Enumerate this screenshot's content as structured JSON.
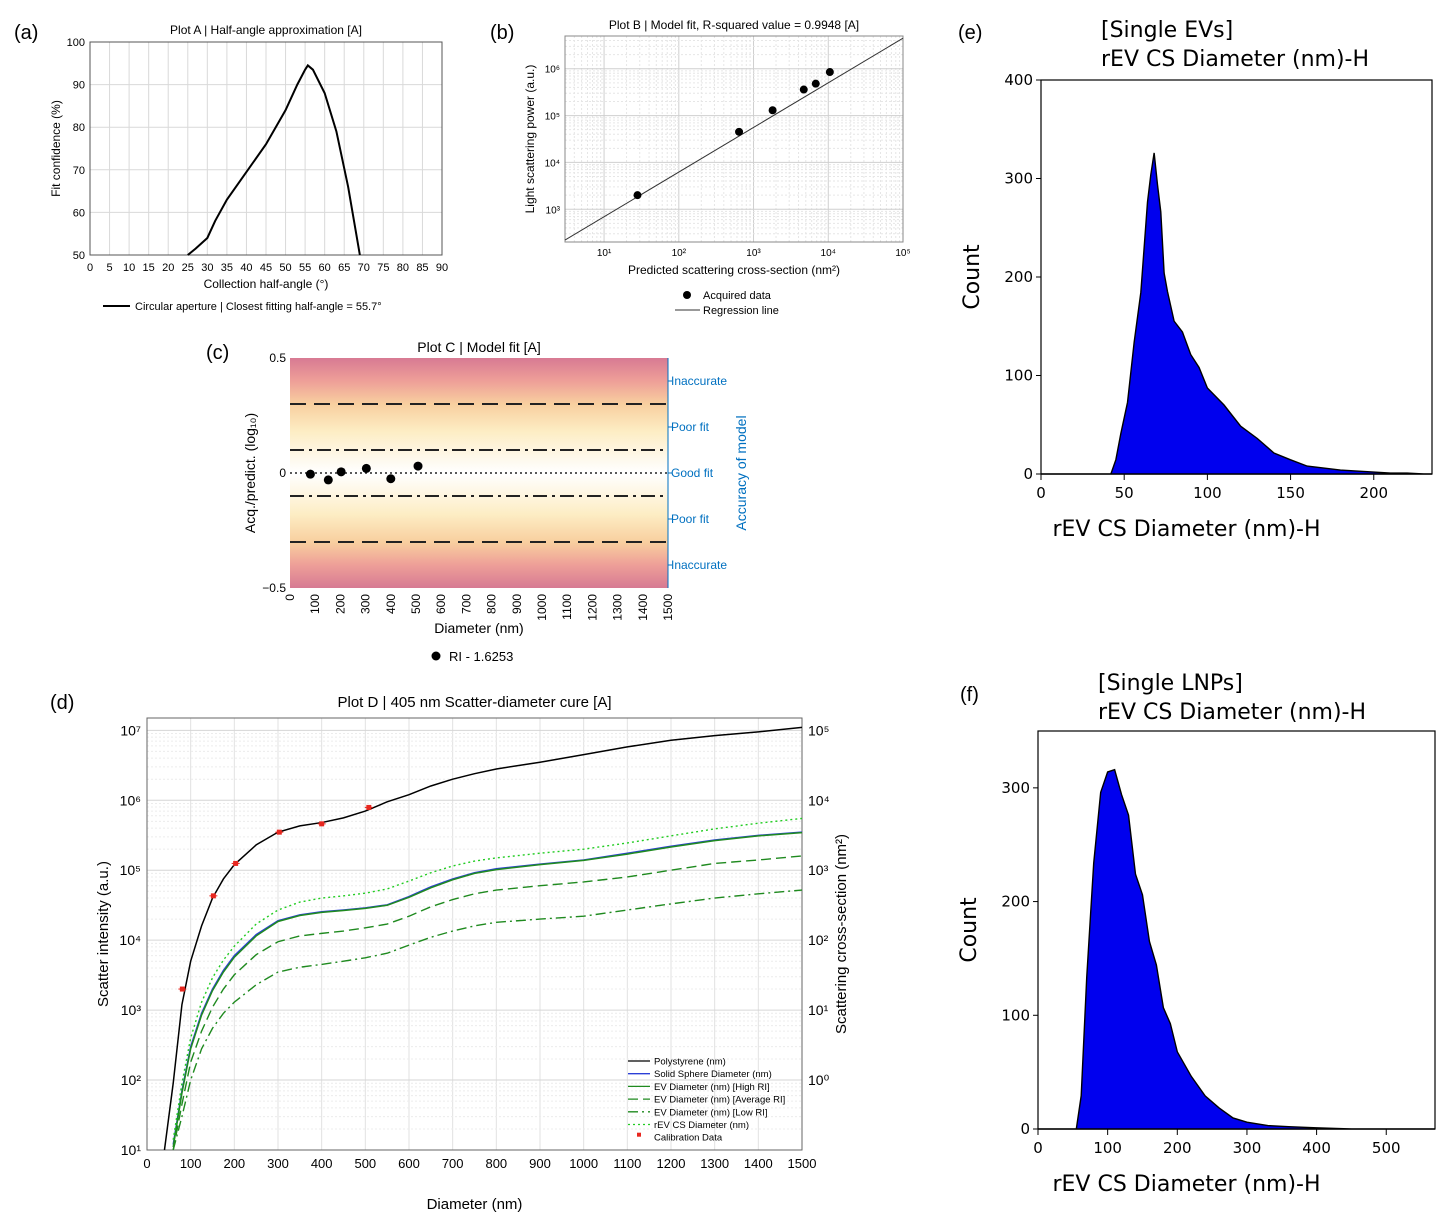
{
  "panel_labels": {
    "a": "(a)",
    "b": "(b)",
    "c": "(c)",
    "d": "(d)",
    "e": "(e)",
    "f": "(f)"
  },
  "chart_data": [
    {
      "id": "a",
      "type": "line",
      "title": "Plot A | Half-angle approximation [A]",
      "xlabel": "Collection half-angle (°)",
      "ylabel": "Fit confidence (%)",
      "xlim": [
        0,
        90
      ],
      "ylim": [
        50,
        100
      ],
      "x_ticks": [
        0,
        5,
        10,
        15,
        20,
        25,
        30,
        35,
        40,
        45,
        50,
        55,
        60,
        65,
        70,
        75,
        80,
        85,
        90
      ],
      "y_ticks": [
        50,
        60,
        70,
        80,
        90,
        100
      ],
      "grid": true,
      "legend_position": "bottom",
      "series": [
        {
          "name": "Circular aperture | Closest fitting half-angle = 55.7°",
          "color": "#000000",
          "x": [
            25,
            27,
            30,
            32,
            35,
            40,
            45,
            50,
            53,
            55,
            55.7,
            57,
            60,
            63,
            66,
            69
          ],
          "y": [
            50,
            51.5,
            54,
            58,
            63,
            69.5,
            76,
            84,
            90,
            93.5,
            94.5,
            93.5,
            88,
            79,
            66,
            50
          ]
        }
      ]
    },
    {
      "id": "b",
      "type": "scatter",
      "title": "Plot B | Model fit, R-squared value = 0.9948 [A]",
      "xlabel": "Predicted scattering cross-section (nm²)",
      "ylabel": "Light scattering power (a.u.)",
      "x_scale": "log",
      "y_scale": "log",
      "xlim": [
        3,
        100000
      ],
      "ylim": [
        200,
        5000000
      ],
      "x_ticks": [
        "10¹",
        "10²",
        "10³",
        "10⁴",
        "10⁵"
      ],
      "y_ticks": [
        "10³",
        "10⁴",
        "10⁵",
        "10⁶"
      ],
      "grid": true,
      "legend_position": "bottom",
      "series": [
        {
          "name": "Acquired data",
          "x": [
            28,
            640,
            1800,
            4700,
            6800,
            10500
          ],
          "y": [
            2000,
            45000,
            130000,
            360000,
            480000,
            850000
          ]
        },
        {
          "name": "Regression line",
          "x": [
            3,
            100000
          ],
          "y": [
            220,
            4500000
          ]
        }
      ]
    },
    {
      "id": "c",
      "type": "scatter",
      "title": "Plot C | Model fit [A]",
      "xlabel": "Diameter (nm)",
      "ylabel": "Acq./predict. (log₁₀)",
      "y2label": "Accuracy of model",
      "xlim": [
        0,
        1500
      ],
      "ylim": [
        -0.5,
        0.5
      ],
      "x_ticks": [
        0,
        100,
        200,
        300,
        400,
        500,
        600,
        700,
        800,
        900,
        1000,
        1100,
        1200,
        1300,
        1400,
        1500
      ],
      "y_ticks": [
        -0.5,
        0,
        0.5
      ],
      "y_tick_labels": [
        "−0.5",
        "0",
        "0.5"
      ],
      "right_labels": [
        "Inaccurate",
        "Poor fit",
        "Good fit",
        "Poor fit",
        "Inaccurate"
      ],
      "right_label_values": [
        0.4,
        0.2,
        0,
        -0.2,
        -0.4
      ],
      "dashed_lines": [
        0.3,
        -0.3
      ],
      "dashdot_lines": [
        0.1,
        -0.1
      ],
      "dotted_lines": [
        0
      ],
      "accent_color": "#0070c0",
      "legend_position": "bottom",
      "series": [
        {
          "name": "RI - 1.6253",
          "x": [
            81,
            152,
            203,
            303,
            400,
            508
          ],
          "y": [
            -0.005,
            -0.03,
            0.005,
            0.02,
            -0.025,
            0.03
          ]
        }
      ]
    },
    {
      "id": "d",
      "type": "line",
      "title": "Plot D | 405 nm Scatter-diameter cure [A]",
      "xlabel": "Diameter (nm)",
      "ylabel": "Scatter intensity (a.u.)",
      "y2label": "Scattering cross-section (nm²)",
      "xlim": [
        0,
        1500
      ],
      "y_scale": "log",
      "ylim": [
        10,
        15000000
      ],
      "y2lim": [
        0.1,
        150000
      ],
      "x_ticks": [
        0,
        100,
        200,
        300,
        400,
        500,
        600,
        700,
        800,
        900,
        1000,
        1100,
        1200,
        1300,
        1400,
        1500
      ],
      "y_ticks": [
        "10¹",
        "10²",
        "10³",
        "10⁴",
        "10⁵",
        "10⁶",
        "10⁷"
      ],
      "y2_ticks": [
        "10⁰",
        "10¹",
        "10²",
        "10³",
        "10⁴",
        "10⁵"
      ],
      "grid": true,
      "legend_position": "bottom-right",
      "x": [
        40,
        60,
        80,
        100,
        125,
        150,
        175,
        200,
        250,
        300,
        350,
        400,
        450,
        500,
        550,
        600,
        650,
        700,
        750,
        800,
        900,
        1000,
        1100,
        1200,
        1300,
        1400,
        1500
      ],
      "series": [
        {
          "name": "Polystyrene (nm)",
          "color": "#000000",
          "style": "solid",
          "values": [
            10,
            90,
            1200,
            5000,
            16000,
            40000,
            75000,
            120000,
            230000,
            350000,
            430000,
            480000,
            560000,
            700000,
            950000,
            1200000,
            1600000,
            2000000,
            2400000,
            2800000,
            3500000,
            4500000,
            5800000,
            7200000,
            8400000,
            9500000,
            11000000
          ]
        },
        {
          "name": "Solid Sphere Diameter (nm)",
          "color": "#2c3fd6",
          "style": "solid",
          "values": null,
          "same_as": null,
          "points": [
            null,
            12,
            70,
            300,
            900,
            2000,
            3700,
            6000,
            12000,
            19000,
            23000,
            25500,
            27000,
            29000,
            32000,
            42000,
            58000,
            75000,
            92000,
            105000,
            122000,
            140000,
            175000,
            220000,
            270000,
            315000,
            350000
          ]
        },
        {
          "name": "EV Diameter (nm) [High RI]",
          "color": "#1f8a1f",
          "style": "solid",
          "points": [
            null,
            11,
            65,
            280,
            850,
            1900,
            3500,
            5700,
            11500,
            18500,
            22500,
            25000,
            26500,
            28500,
            31500,
            41000,
            56000,
            73000,
            90000,
            102000,
            120000,
            138000,
            170000,
            215000,
            265000,
            310000,
            345000
          ]
        },
        {
          "name": "EV Diameter (nm) [Average RI]",
          "color": "#1f8a1f",
          "style": "dashed",
          "points": [
            null,
            10,
            45,
            180,
            500,
            1100,
            2000,
            3200,
            6200,
            9500,
            11500,
            12500,
            13500,
            15000,
            17000,
            22000,
            30000,
            38000,
            46000,
            52000,
            60000,
            68000,
            80000,
            100000,
            125000,
            140000,
            160000
          ]
        },
        {
          "name": "EV Diameter (nm) [Low RI]",
          "color": "#1f8a1f",
          "style": "dashdot",
          "points": [
            null,
            10,
            30,
            100,
            280,
            550,
            900,
            1300,
            2300,
            3500,
            4100,
            4500,
            5000,
            5600,
            6500,
            8500,
            11000,
            13500,
            16000,
            18000,
            20000,
            22000,
            27000,
            33000,
            40000,
            46000,
            52000
          ]
        },
        {
          "name": "rEV CS Diameter (nm)",
          "color": "#22cc22",
          "style": "dotted",
          "points": [
            null,
            14,
            90,
            400,
            1300,
            2900,
            5200,
            8200,
            17000,
            27000,
            35000,
            40000,
            43000,
            47000,
            54000,
            70000,
            92000,
            115000,
            135000,
            150000,
            175000,
            200000,
            245000,
            310000,
            390000,
            470000,
            550000
          ]
        }
      ],
      "calibration": {
        "name": "Calibration Data",
        "color": "#e8271f",
        "x": [
          81,
          152,
          203,
          303,
          400,
          508
        ],
        "y": [
          2000,
          43000,
          125000,
          350000,
          460000,
          790000
        ]
      }
    },
    {
      "id": "e",
      "type": "area",
      "title": "[Single EVs]",
      "subtitle": "rEV CS Diameter (nm)-H",
      "xlabel": "rEV CS Diameter (nm)-H",
      "ylabel": "Count",
      "xlim": [
        0,
        235
      ],
      "ylim": [
        0,
        400
      ],
      "x_ticks": [
        0,
        50,
        100,
        150,
        200
      ],
      "y_ticks": [
        0,
        100,
        200,
        300,
        400
      ],
      "fill_color": "#0000ee",
      "x": [
        0,
        42,
        45,
        48,
        52,
        56,
        60,
        64,
        66,
        68,
        70,
        72,
        74,
        76,
        80,
        85,
        90,
        95,
        100,
        110,
        120,
        130,
        140,
        150,
        160,
        170,
        180,
        190,
        200,
        210,
        220,
        230,
        235
      ],
      "values": [
        0,
        0,
        15,
        40,
        75,
        130,
        190,
        270,
        310,
        320,
        300,
        260,
        210,
        180,
        160,
        140,
        125,
        105,
        90,
        68,
        50,
        35,
        22,
        14,
        8,
        6,
        4,
        3,
        2,
        1,
        1,
        0,
        0
      ]
    },
    {
      "id": "f",
      "type": "area",
      "title": "[Single LNPs]",
      "subtitle": "rEV CS Diameter (nm)-H",
      "xlabel": "rEV CS Diameter (nm)-H",
      "ylabel": "Count",
      "xlim": [
        0,
        570
      ],
      "ylim": [
        0,
        350
      ],
      "x_ticks": [
        0,
        100,
        200,
        300,
        400,
        500
      ],
      "y_ticks": [
        0,
        100,
        200,
        300
      ],
      "fill_color": "#0000ee",
      "x": [
        0,
        55,
        62,
        70,
        80,
        90,
        100,
        110,
        120,
        130,
        140,
        150,
        160,
        170,
        180,
        190,
        200,
        220,
        240,
        260,
        280,
        300,
        330,
        360,
        400,
        450,
        500,
        570
      ],
      "values": [
        0,
        0,
        30,
        130,
        240,
        290,
        320,
        310,
        300,
        270,
        230,
        200,
        170,
        140,
        110,
        90,
        70,
        45,
        30,
        18,
        10,
        6,
        3,
        2,
        1,
        0,
        0,
        0
      ]
    }
  ],
  "legend_a": {
    "label": "Circular aperture | Closest fitting half-angle = 55.7°"
  },
  "legend_b": {
    "data_label": "Acquired data",
    "line_label": "Regression line"
  },
  "legend_c": {
    "label": "RI - 1.6253"
  }
}
